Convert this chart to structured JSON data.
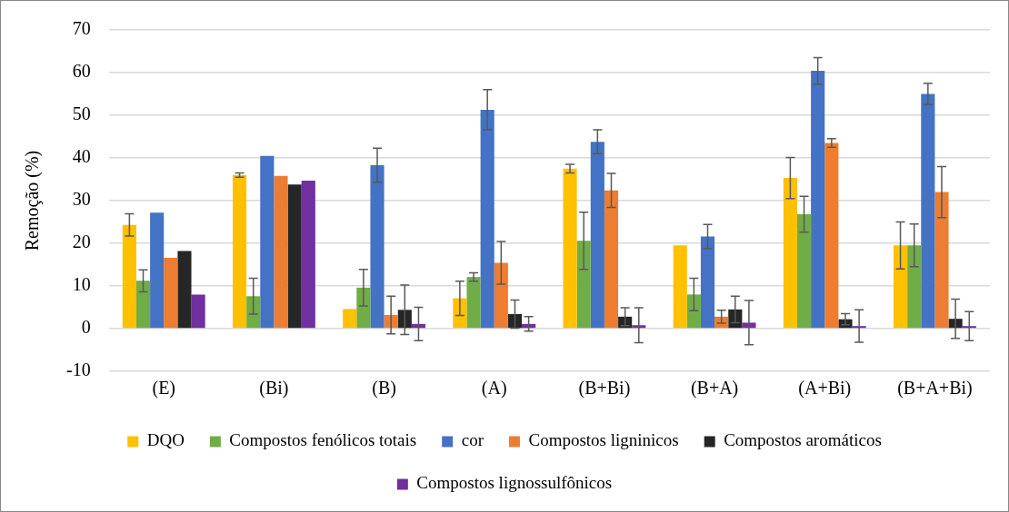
{
  "chart_data": {
    "type": "bar",
    "ylabel": "Remoção (%)",
    "categories": [
      "(E)",
      "(Bi)",
      "(B)",
      "(A)",
      "(B+Bi)",
      "(B+A)",
      "(A+Bi)",
      "(B+A+Bi)"
    ],
    "series": [
      {
        "name": "DQO",
        "color": "#ffc000",
        "values": [
          24.3,
          36.0,
          4.6,
          7.1,
          37.5,
          19.5,
          35.3,
          19.5
        ],
        "errors": [
          2.6,
          0.5,
          null,
          4.0,
          1.0,
          null,
          4.8,
          5.5
        ]
      },
      {
        "name": "Compostos fenólicos totais",
        "color": "#70ad47",
        "values": [
          11.2,
          7.6,
          9.6,
          12.1,
          20.6,
          8.0,
          26.8,
          19.5
        ],
        "errors": [
          2.6,
          4.2,
          4.3,
          1.0,
          6.7,
          3.8,
          4.2,
          5.0
        ]
      },
      {
        "name": "cor",
        "color": "#4472c4",
        "values": [
          27.2,
          40.5,
          38.3,
          51.3,
          43.8,
          21.6,
          60.4,
          55.0
        ],
        "errors": [
          null,
          null,
          4.0,
          4.7,
          2.8,
          2.8,
          3.1,
          2.5
        ]
      },
      {
        "name": "Compostos ligninicos",
        "color": "#ed7d31",
        "values": [
          16.6,
          35.8,
          3.2,
          15.4,
          32.4,
          2.8,
          43.5,
          32.0
        ],
        "errors": [
          null,
          null,
          4.4,
          5.0,
          4.0,
          1.5,
          1.0,
          6.0
        ]
      },
      {
        "name": "Compostos aromáticos",
        "color": "#262626",
        "values": [
          18.2,
          33.8,
          4.4,
          3.4,
          2.8,
          4.5,
          2.2,
          2.3
        ],
        "errors": [
          null,
          null,
          5.8,
          3.3,
          2.1,
          3.1,
          1.3,
          4.6
        ]
      },
      {
        "name": "Compostos lignossulfônicos",
        "color": "#7030a0",
        "values": [
          8.0,
          34.7,
          1.1,
          1.1,
          0.8,
          1.4,
          0.6,
          0.6
        ],
        "errors": [
          null,
          null,
          3.9,
          1.7,
          4.1,
          5.2,
          3.8,
          3.4
        ]
      }
    ],
    "ylim": [
      -10,
      70
    ],
    "yticks": [
      -10,
      0,
      10,
      20,
      30,
      40,
      50,
      60,
      70
    ],
    "grid": "y",
    "legend": "bottom"
  }
}
